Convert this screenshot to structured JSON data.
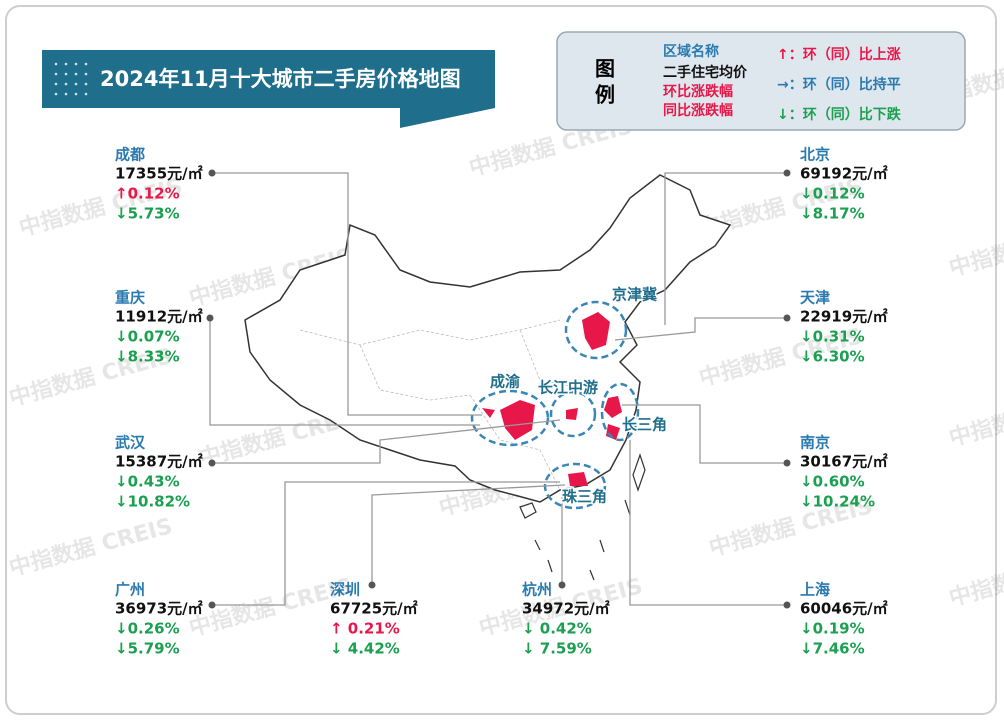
{
  "title": "2024年11月十大城市二手房价格地图",
  "legend": {
    "heading": [
      "图",
      "例"
    ],
    "fields": [
      "区域名称",
      "二手住宅均价",
      "环比涨跌幅",
      "同比涨跌幅"
    ],
    "arrows": [
      "↑：环（同）比上涨",
      "→：环（同）比持平",
      "↓：环（同）比下跌"
    ]
  },
  "regions": [
    "京津冀",
    "成渝",
    "长江中游",
    "长三角",
    "珠三角"
  ],
  "cities": [
    {
      "name": "成都",
      "price": "17355元/㎡",
      "mom": "↑0.12%",
      "yoy": "↓5.73%"
    },
    {
      "name": "重庆",
      "price": "11912元/㎡",
      "mom": "↓0.07%",
      "yoy": "↓8.33%"
    },
    {
      "name": "武汉",
      "price": "15387元/㎡",
      "mom": "↓0.43%",
      "yoy": "↓10.82%"
    },
    {
      "name": "广州",
      "price": "36973元/㎡",
      "mom": "↓0.26%",
      "yoy": "↓5.79%"
    },
    {
      "name": "深圳",
      "price": "67725元/㎡",
      "mom": "↑ 0.21%",
      "yoy": "↓ 4.42%"
    },
    {
      "name": "杭州",
      "price": "34972元/㎡",
      "mom": "↓ 0.42%",
      "yoy": "↓ 7.59%"
    },
    {
      "name": "北京",
      "price": "69192元/㎡",
      "mom": "↓0.12%",
      "yoy": "↓8.17%"
    },
    {
      "name": "天津",
      "price": "22919元/㎡",
      "mom": "↓0.31%",
      "yoy": "↓6.30%"
    },
    {
      "name": "南京",
      "price": "30167元/㎡",
      "mom": "↓0.60%",
      "yoy": "↓10.24%"
    },
    {
      "name": "上海",
      "price": "60046元/㎡",
      "mom": "↓0.19%",
      "yoy": "↓7.46%"
    }
  ],
  "watermark": "中指数据 CREIS"
}
